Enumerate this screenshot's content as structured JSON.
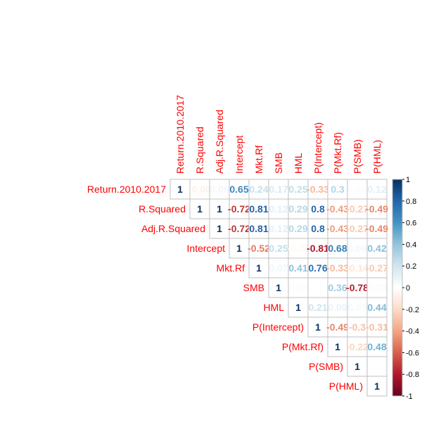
{
  "chart_data": {
    "type": "heatmap",
    "title": "",
    "variables": [
      "Return.2010.2017",
      "R.Squared",
      "Adj.R.Squared",
      "Intercept",
      "Mkt.Rf",
      "SMB",
      "HML",
      "P(Intercept)",
      "P(Mkt.Rf)",
      "P(SMB)",
      "P(HML)"
    ],
    "matrix": [
      [
        1,
        -0.08,
        0.06,
        0.65,
        0.24,
        0.17,
        0.25,
        -0.33,
        0.3,
        0.02,
        0.12
      ],
      [
        null,
        1,
        1,
        -0.72,
        0.81,
        0.12,
        0.29,
        0.8,
        -0.43,
        -0.27,
        -0.49
      ],
      [
        null,
        null,
        1,
        -0.72,
        0.81,
        0.12,
        0.29,
        0.8,
        -0.43,
        -0.27,
        -0.49
      ],
      [
        null,
        null,
        null,
        1,
        -0.52,
        0.25,
        -0.04,
        -0.81,
        0.68,
        0.06,
        0.42
      ],
      [
        null,
        null,
        null,
        null,
        1,
        0.07,
        0.41,
        0.76,
        -0.33,
        -0.14,
        -0.27
      ],
      [
        null,
        null,
        null,
        null,
        null,
        1,
        0.03,
        0.01,
        0.36,
        -0.78,
        0.03
      ],
      [
        null,
        null,
        null,
        null,
        null,
        null,
        1,
        0.21,
        0.09,
        0.05,
        0.44
      ],
      [
        null,
        null,
        null,
        null,
        null,
        null,
        null,
        1,
        -0.49,
        -0.3,
        -0.31
      ],
      [
        null,
        null,
        null,
        null,
        null,
        null,
        null,
        null,
        1,
        -0.22,
        0.48
      ],
      [
        null,
        null,
        null,
        null,
        null,
        null,
        null,
        null,
        null,
        1,
        0.01
      ],
      [
        null,
        null,
        null,
        null,
        null,
        null,
        null,
        null,
        null,
        null,
        1
      ]
    ],
    "colorbar": {
      "range": [
        -1,
        1
      ],
      "ticks": [
        "1",
        "0.8",
        "0.6",
        "0.4",
        "0.2",
        "0",
        "-0.2",
        "-0.4",
        "-0.6",
        "-0.8",
        "-1"
      ]
    },
    "colors": {
      "negative": "#67001f",
      "neutral": "#ffffff",
      "positive": "#053061",
      "label": "#ff0000"
    }
  }
}
